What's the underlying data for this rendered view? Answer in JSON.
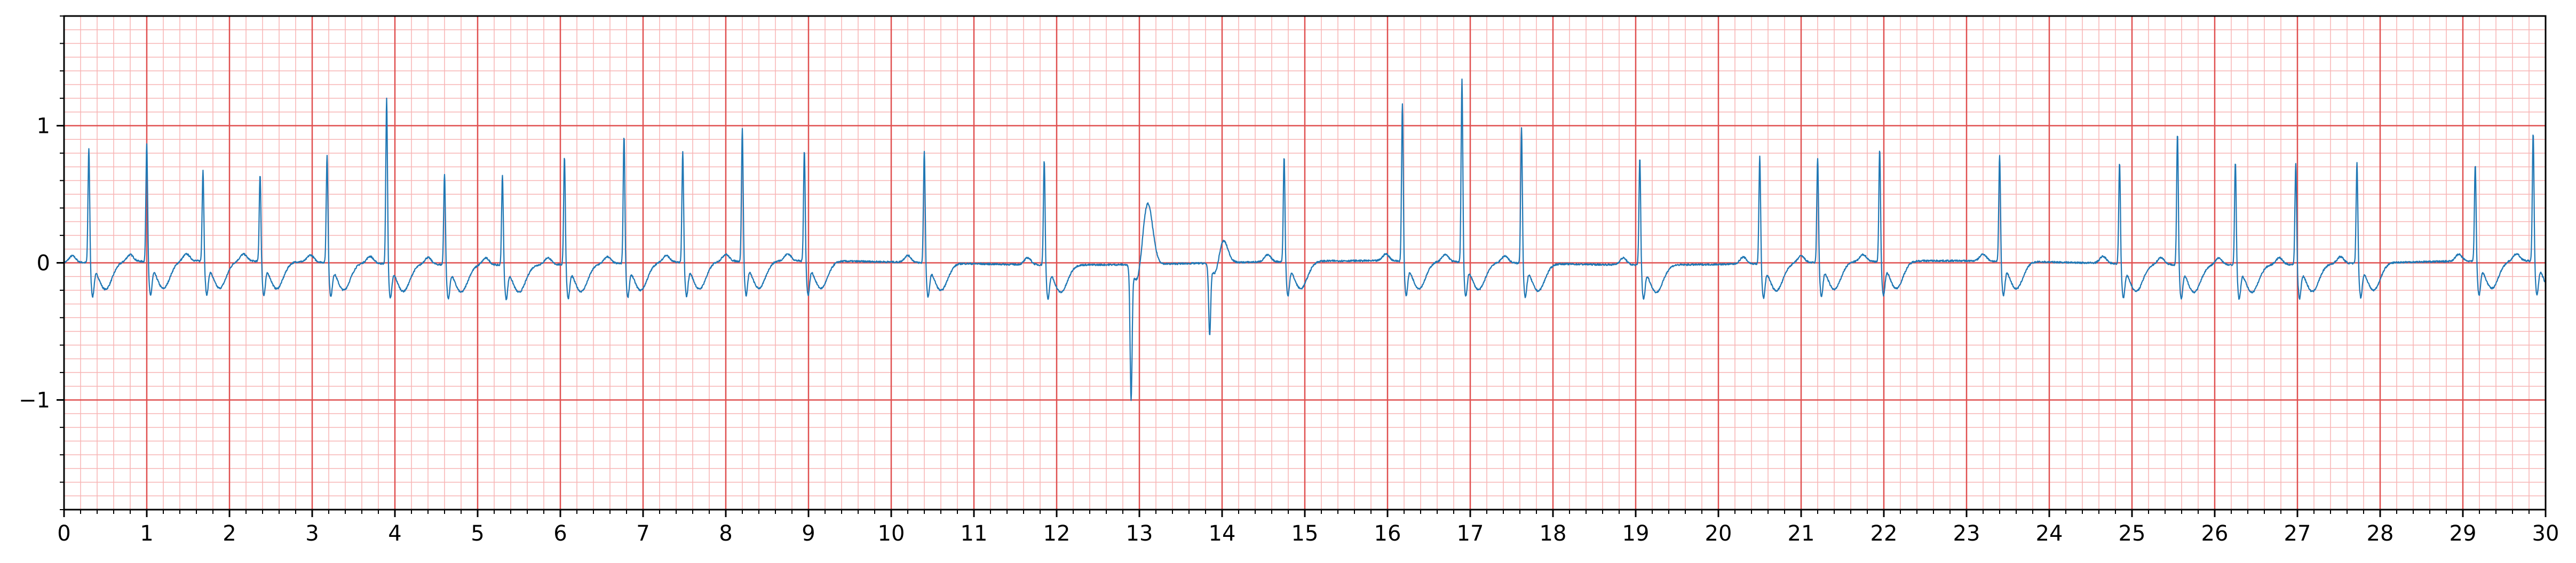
{
  "chart_data": {
    "type": "line",
    "title": "",
    "xlabel": "",
    "ylabel": "",
    "xlim": [
      0,
      30
    ],
    "ylim": [
      -1.8,
      1.8
    ],
    "x_ticks": [
      0,
      1,
      2,
      3,
      4,
      5,
      6,
      7,
      8,
      9,
      10,
      11,
      12,
      13,
      14,
      15,
      16,
      17,
      18,
      19,
      20,
      21,
      22,
      23,
      24,
      25,
      26,
      27,
      28,
      29,
      30
    ],
    "x_tick_labels": [
      "0",
      "1",
      "2",
      "3",
      "4",
      "5",
      "6",
      "7",
      "8",
      "9",
      "10",
      "11",
      "12",
      "13",
      "14",
      "15",
      "16",
      "17",
      "18",
      "19",
      "20",
      "21",
      "22",
      "23",
      "24",
      "25",
      "26",
      "27",
      "28",
      "29",
      "30"
    ],
    "y_ticks": [
      -1,
      0,
      1
    ],
    "y_tick_labels": [
      "−1",
      "0",
      "1"
    ],
    "grid": {
      "major": true,
      "minor": true,
      "x_minor_step": 0.2,
      "y_minor_step": 0.1,
      "major_color": "#e05050",
      "minor_color": "#f7b4b4"
    },
    "series": [
      {
        "color": "#1f77b4",
        "beats": [
          {
            "t": 0.3,
            "amp": 0.85,
            "kind": "V"
          },
          {
            "t": 1.0,
            "amp": 0.88,
            "kind": "V"
          },
          {
            "t": 1.68,
            "amp": 0.68,
            "kind": "V"
          },
          {
            "t": 2.37,
            "amp": 0.65,
            "kind": "V"
          },
          {
            "t": 3.18,
            "amp": 0.8,
            "kind": "V"
          },
          {
            "t": 3.9,
            "amp": 1.22,
            "kind": "V"
          },
          {
            "t": 4.6,
            "amp": 0.68,
            "kind": "V"
          },
          {
            "t": 5.3,
            "amp": 0.67,
            "kind": "V"
          },
          {
            "t": 6.05,
            "amp": 0.8,
            "kind": "V"
          },
          {
            "t": 6.77,
            "amp": 0.95,
            "kind": "V"
          },
          {
            "t": 7.48,
            "amp": 0.82,
            "kind": "V"
          },
          {
            "t": 8.2,
            "amp": 0.98,
            "kind": "V"
          },
          {
            "t": 8.95,
            "amp": 0.82,
            "kind": "V"
          },
          {
            "t": 10.4,
            "amp": 0.83,
            "kind": "V"
          },
          {
            "t": 11.85,
            "amp": 0.78,
            "kind": "V"
          },
          {
            "t": 12.9,
            "amp": -0.95,
            "kind": "neg"
          },
          {
            "t": 13.1,
            "amp": 0.45,
            "kind": "wave"
          },
          {
            "t": 13.85,
            "amp": -0.5,
            "kind": "neg"
          },
          {
            "t": 14.0,
            "amp": 0.2,
            "kind": "wave"
          },
          {
            "t": 14.75,
            "amp": 0.78,
            "kind": "V"
          },
          {
            "t": 16.18,
            "amp": 1.17,
            "kind": "V"
          },
          {
            "t": 16.9,
            "amp": 1.35,
            "kind": "V"
          },
          {
            "t": 17.62,
            "amp": 1.01,
            "kind": "V"
          },
          {
            "t": 19.05,
            "amp": 0.8,
            "kind": "V"
          },
          {
            "t": 20.5,
            "amp": 0.8,
            "kind": "V"
          },
          {
            "t": 21.2,
            "amp": 0.78,
            "kind": "V"
          },
          {
            "t": 21.95,
            "amp": 0.83,
            "kind": "V"
          },
          {
            "t": 23.4,
            "amp": 0.79,
            "kind": "V"
          },
          {
            "t": 24.85,
            "amp": 0.75,
            "kind": "V"
          },
          {
            "t": 25.55,
            "amp": 0.97,
            "kind": "V"
          },
          {
            "t": 26.25,
            "amp": 0.77,
            "kind": "V"
          },
          {
            "t": 26.98,
            "amp": 0.75,
            "kind": "V"
          },
          {
            "t": 27.72,
            "amp": 0.75,
            "kind": "V"
          },
          {
            "t": 29.15,
            "amp": 0.72,
            "kind": "V"
          },
          {
            "t": 29.85,
            "amp": 0.95,
            "kind": "V"
          }
        ]
      }
    ]
  }
}
